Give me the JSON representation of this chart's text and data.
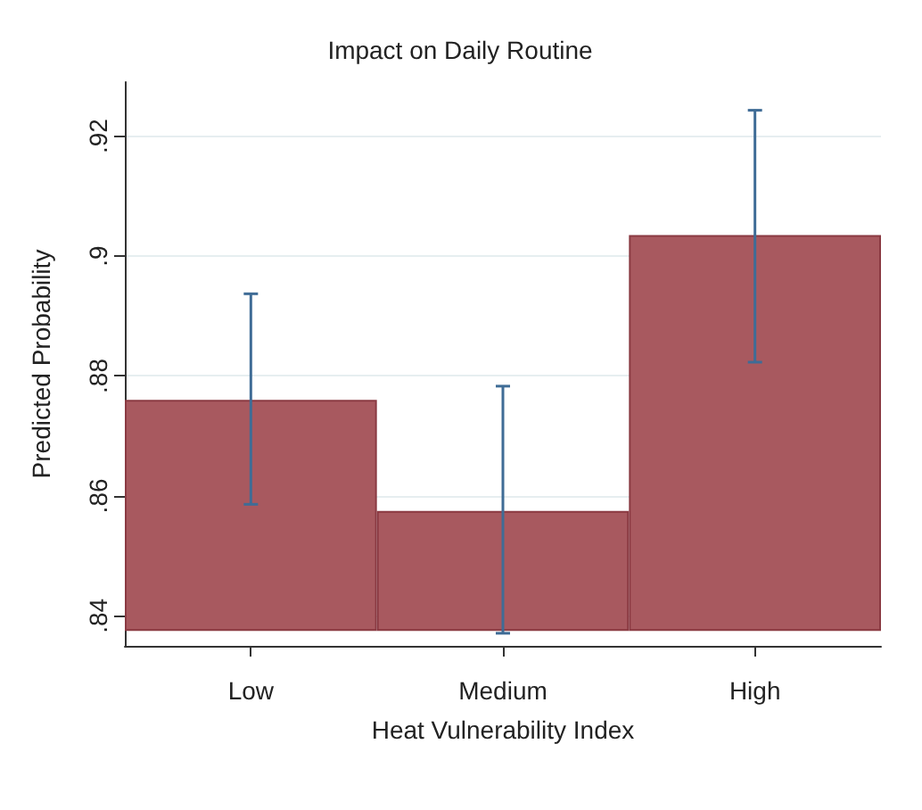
{
  "chart_data": {
    "type": "bar",
    "title": "Impact on Daily Routine",
    "xlabel": "Heat Vulnerability Index",
    "ylabel": "Predicted Probability",
    "categories": [
      "Low",
      "Medium",
      "High"
    ],
    "base": [
      0.8375,
      0.8375,
      0.8375
    ],
    "values": [
      0.0385,
      0.02,
      0.066
    ],
    "errors": [
      [
        0.8586,
        0.8937
      ],
      [
        0.8371,
        0.8783
      ],
      [
        0.8823,
        0.9243
      ]
    ],
    "color": "#a8595f",
    "ylim": [
      0.835,
      0.929
    ],
    "yticks": [
      {
        "value": 0.84,
        "label": ".84"
      },
      {
        "value": 0.86,
        "label": ".86"
      },
      {
        "value": 0.88,
        "label": ".88"
      },
      {
        "value": 0.9,
        "label": ".9"
      },
      {
        "value": 0.92,
        "label": ".92"
      }
    ],
    "grid": "y"
  }
}
